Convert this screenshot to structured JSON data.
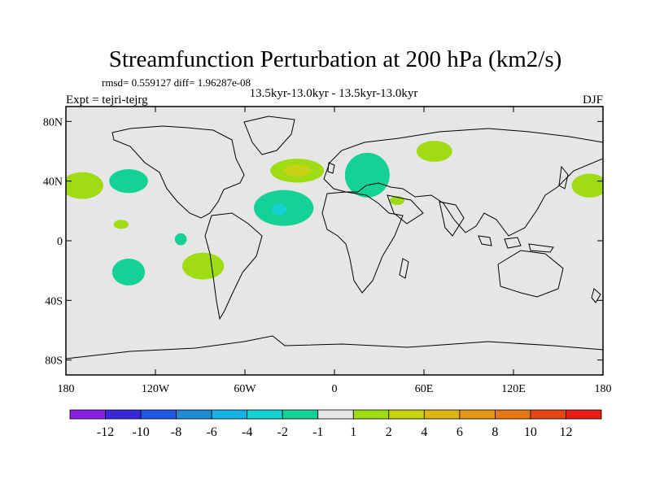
{
  "chart_data": {
    "type": "filled-contour-map",
    "title": "Streamfunction Perturbation at 200 hPa (km2/s)",
    "stats_line": "rmsd= 0.559127 diff= 1.96287e-08",
    "subtitle": "13.5kyr-13.0kyr - 13.5kyr-13.0kyr",
    "left_label": "Expt = tejri-tejrg",
    "right_label": "DJF",
    "lon_range": [
      -180,
      180
    ],
    "lat_range": [
      -90,
      90
    ],
    "xticks": [
      {
        "value": -180,
        "label": "180"
      },
      {
        "value": -120,
        "label": "120W"
      },
      {
        "value": -60,
        "label": "60W"
      },
      {
        "value": 0,
        "label": "0"
      },
      {
        "value": 60,
        "label": "60E"
      },
      {
        "value": 120,
        "label": "120E"
      },
      {
        "value": 180,
        "label": "180"
      }
    ],
    "yticks": [
      {
        "value": 80,
        "label": "80N"
      },
      {
        "value": 40,
        "label": "40N"
      },
      {
        "value": 0,
        "label": "0"
      },
      {
        "value": -40,
        "label": "40S"
      },
      {
        "value": -80,
        "label": "80S"
      }
    ],
    "colorbar": {
      "colors": [
        "#8c1ee6",
        "#3c28dc",
        "#1e5ae6",
        "#1e8cd2",
        "#14b4e6",
        "#14d2d2",
        "#14d296",
        "#e6e6e6",
        "#a0dc14",
        "#c8d214",
        "#dcb414",
        "#e69614",
        "#e67814",
        "#e64614",
        "#e61e14"
      ],
      "labels": [
        "-12",
        "-10",
        "-8",
        "-6",
        "-4",
        "-2",
        "-1",
        "1",
        "2",
        "4",
        "6",
        "8",
        "10",
        "12"
      ]
    },
    "anomalies": [
      {
        "lon": -169,
        "lat": 37,
        "rlon": 14,
        "rlat": 9,
        "level": 2,
        "color": "#a0dc14"
      },
      {
        "lon": 171,
        "lat": 37,
        "rlon": 12,
        "rlat": 8,
        "level": 2,
        "color": "#a0dc14"
      },
      {
        "lon": -138,
        "lat": 40,
        "rlon": 13,
        "rlat": 8,
        "level": -1,
        "color": "#14d296"
      },
      {
        "lon": -143,
        "lat": 11,
        "rlon": 5,
        "rlat": 3,
        "level": 2,
        "color": "#a0dc14"
      },
      {
        "lon": -103,
        "lat": 1,
        "rlon": 4,
        "rlat": 4,
        "level": -1,
        "color": "#14d296"
      },
      {
        "lon": -138,
        "lat": -21,
        "rlon": 11,
        "rlat": 9,
        "level": -1,
        "color": "#14d296"
      },
      {
        "lon": -88,
        "lat": -17,
        "rlon": 14,
        "rlat": 9,
        "level": 2,
        "color": "#a0dc14"
      },
      {
        "lon": -34,
        "lat": 22,
        "rlon": 20,
        "rlat": 12,
        "level": -1,
        "color": "#14d296"
      },
      {
        "lon": -37,
        "lat": 21,
        "rlon": 5,
        "rlat": 4,
        "level": -2,
        "color": "#14d2d2"
      },
      {
        "lon": -25,
        "lat": 47,
        "rlon": 18,
        "rlat": 8,
        "level": 2,
        "color": "#a0dc14"
      },
      {
        "lon": -25,
        "lat": 47,
        "rlon": 9,
        "rlat": 4,
        "level": 4,
        "color": "#c8d214"
      },
      {
        "lon": 22,
        "lat": 44,
        "rlon": 15,
        "rlat": 15,
        "level": -1,
        "color": "#14d296"
      },
      {
        "lon": 42,
        "lat": 27,
        "rlon": 5,
        "rlat": 3,
        "level": 2,
        "color": "#a0dc14"
      },
      {
        "lon": 67,
        "lat": 60,
        "rlon": 12,
        "rlat": 7,
        "level": 2,
        "color": "#a0dc14"
      }
    ]
  }
}
